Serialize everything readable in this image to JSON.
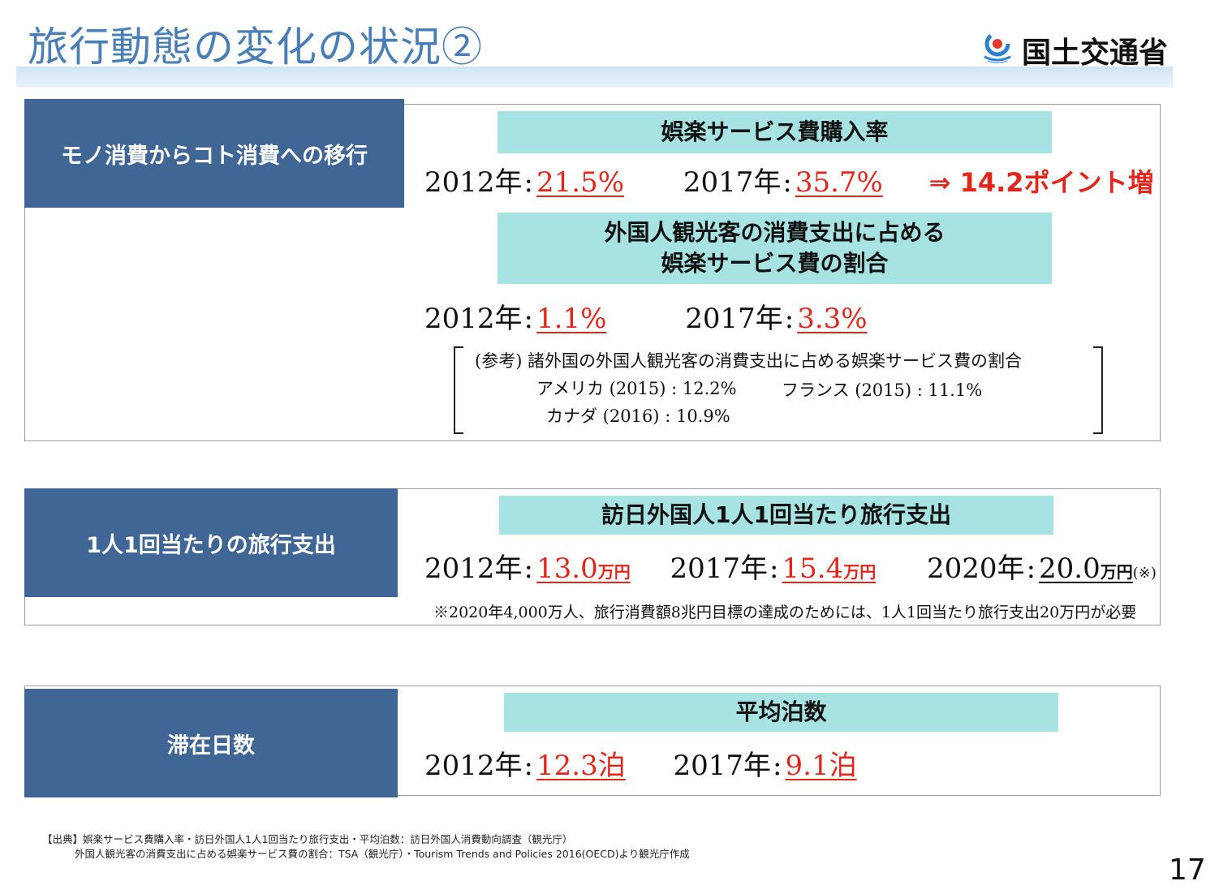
{
  "page": {
    "title": "旅行動態の変化の状況②",
    "logo_text": "国土交通省",
    "page_number": "17"
  },
  "sections": [
    {
      "label": "モノ消費からコト消費への移行",
      "blocks": [
        {
          "heading_lines": [
            "娯楽サービス費購入率"
          ],
          "items": [
            {
              "year": "2012年",
              "value": "21.5%"
            },
            {
              "year": "2017年",
              "value": "35.7%"
            }
          ],
          "increase": "⇒ 14.2ポイント増"
        },
        {
          "heading_lines": [
            "外国人観光客の消費支出に占める",
            "娯楽サービス費の割合"
          ],
          "items": [
            {
              "year": "2012年",
              "value": "1.1%"
            },
            {
              "year": "2017年",
              "value": "3.3%"
            }
          ]
        }
      ],
      "reference": {
        "title": "(参考) 諸外国の外国人観光客の消費支出に占める娯楽サービス費の割合",
        "entries": [
          {
            "country": "アメリカ (2015)",
            "value": "12.2%"
          },
          {
            "country": "フランス (2015)",
            "value": "11.1%"
          },
          {
            "country": "カナダ (2016)",
            "value": "10.9%"
          }
        ]
      }
    },
    {
      "label": "1人1回当たりの旅行支出",
      "heading": "訪日外国人1人1回当たり旅行支出",
      "items": [
        {
          "year": "2012年",
          "value": "13.0",
          "unit": "万円"
        },
        {
          "year": "2017年",
          "value": "15.4",
          "unit": "万円"
        },
        {
          "year": "2020年",
          "value": "20.0",
          "unit": "万円",
          "mark": "(※)"
        }
      ],
      "note": "※2020年4,000万人、旅行消費額8兆円目標の達成のためには、1人1回当たり旅行支出20万円が必要"
    },
    {
      "label": "滞在日数",
      "heading": "平均泊数",
      "items": [
        {
          "year": "2012年",
          "value": "12.3泊"
        },
        {
          "year": "2017年",
          "value": "9.1泊"
        }
      ]
    }
  ],
  "source": {
    "line1": "【出典】娯楽サービス費購入率・訪日外国人1人1回当たり旅行支出・平均泊数：訪日外国人消費動向調査（観光庁）",
    "line2": "外国人観光客の消費支出に占める娯楽サービス費の割合：TSA（観光庁）・Tourism Trends and Policies 2016(OECD)より観光庁作成"
  },
  "colors": {
    "accent_value": "#e1261c",
    "label_bg": "#3f6695",
    "heading_bg": "#a8e3e4",
    "title_text": "#4a7fb6"
  }
}
